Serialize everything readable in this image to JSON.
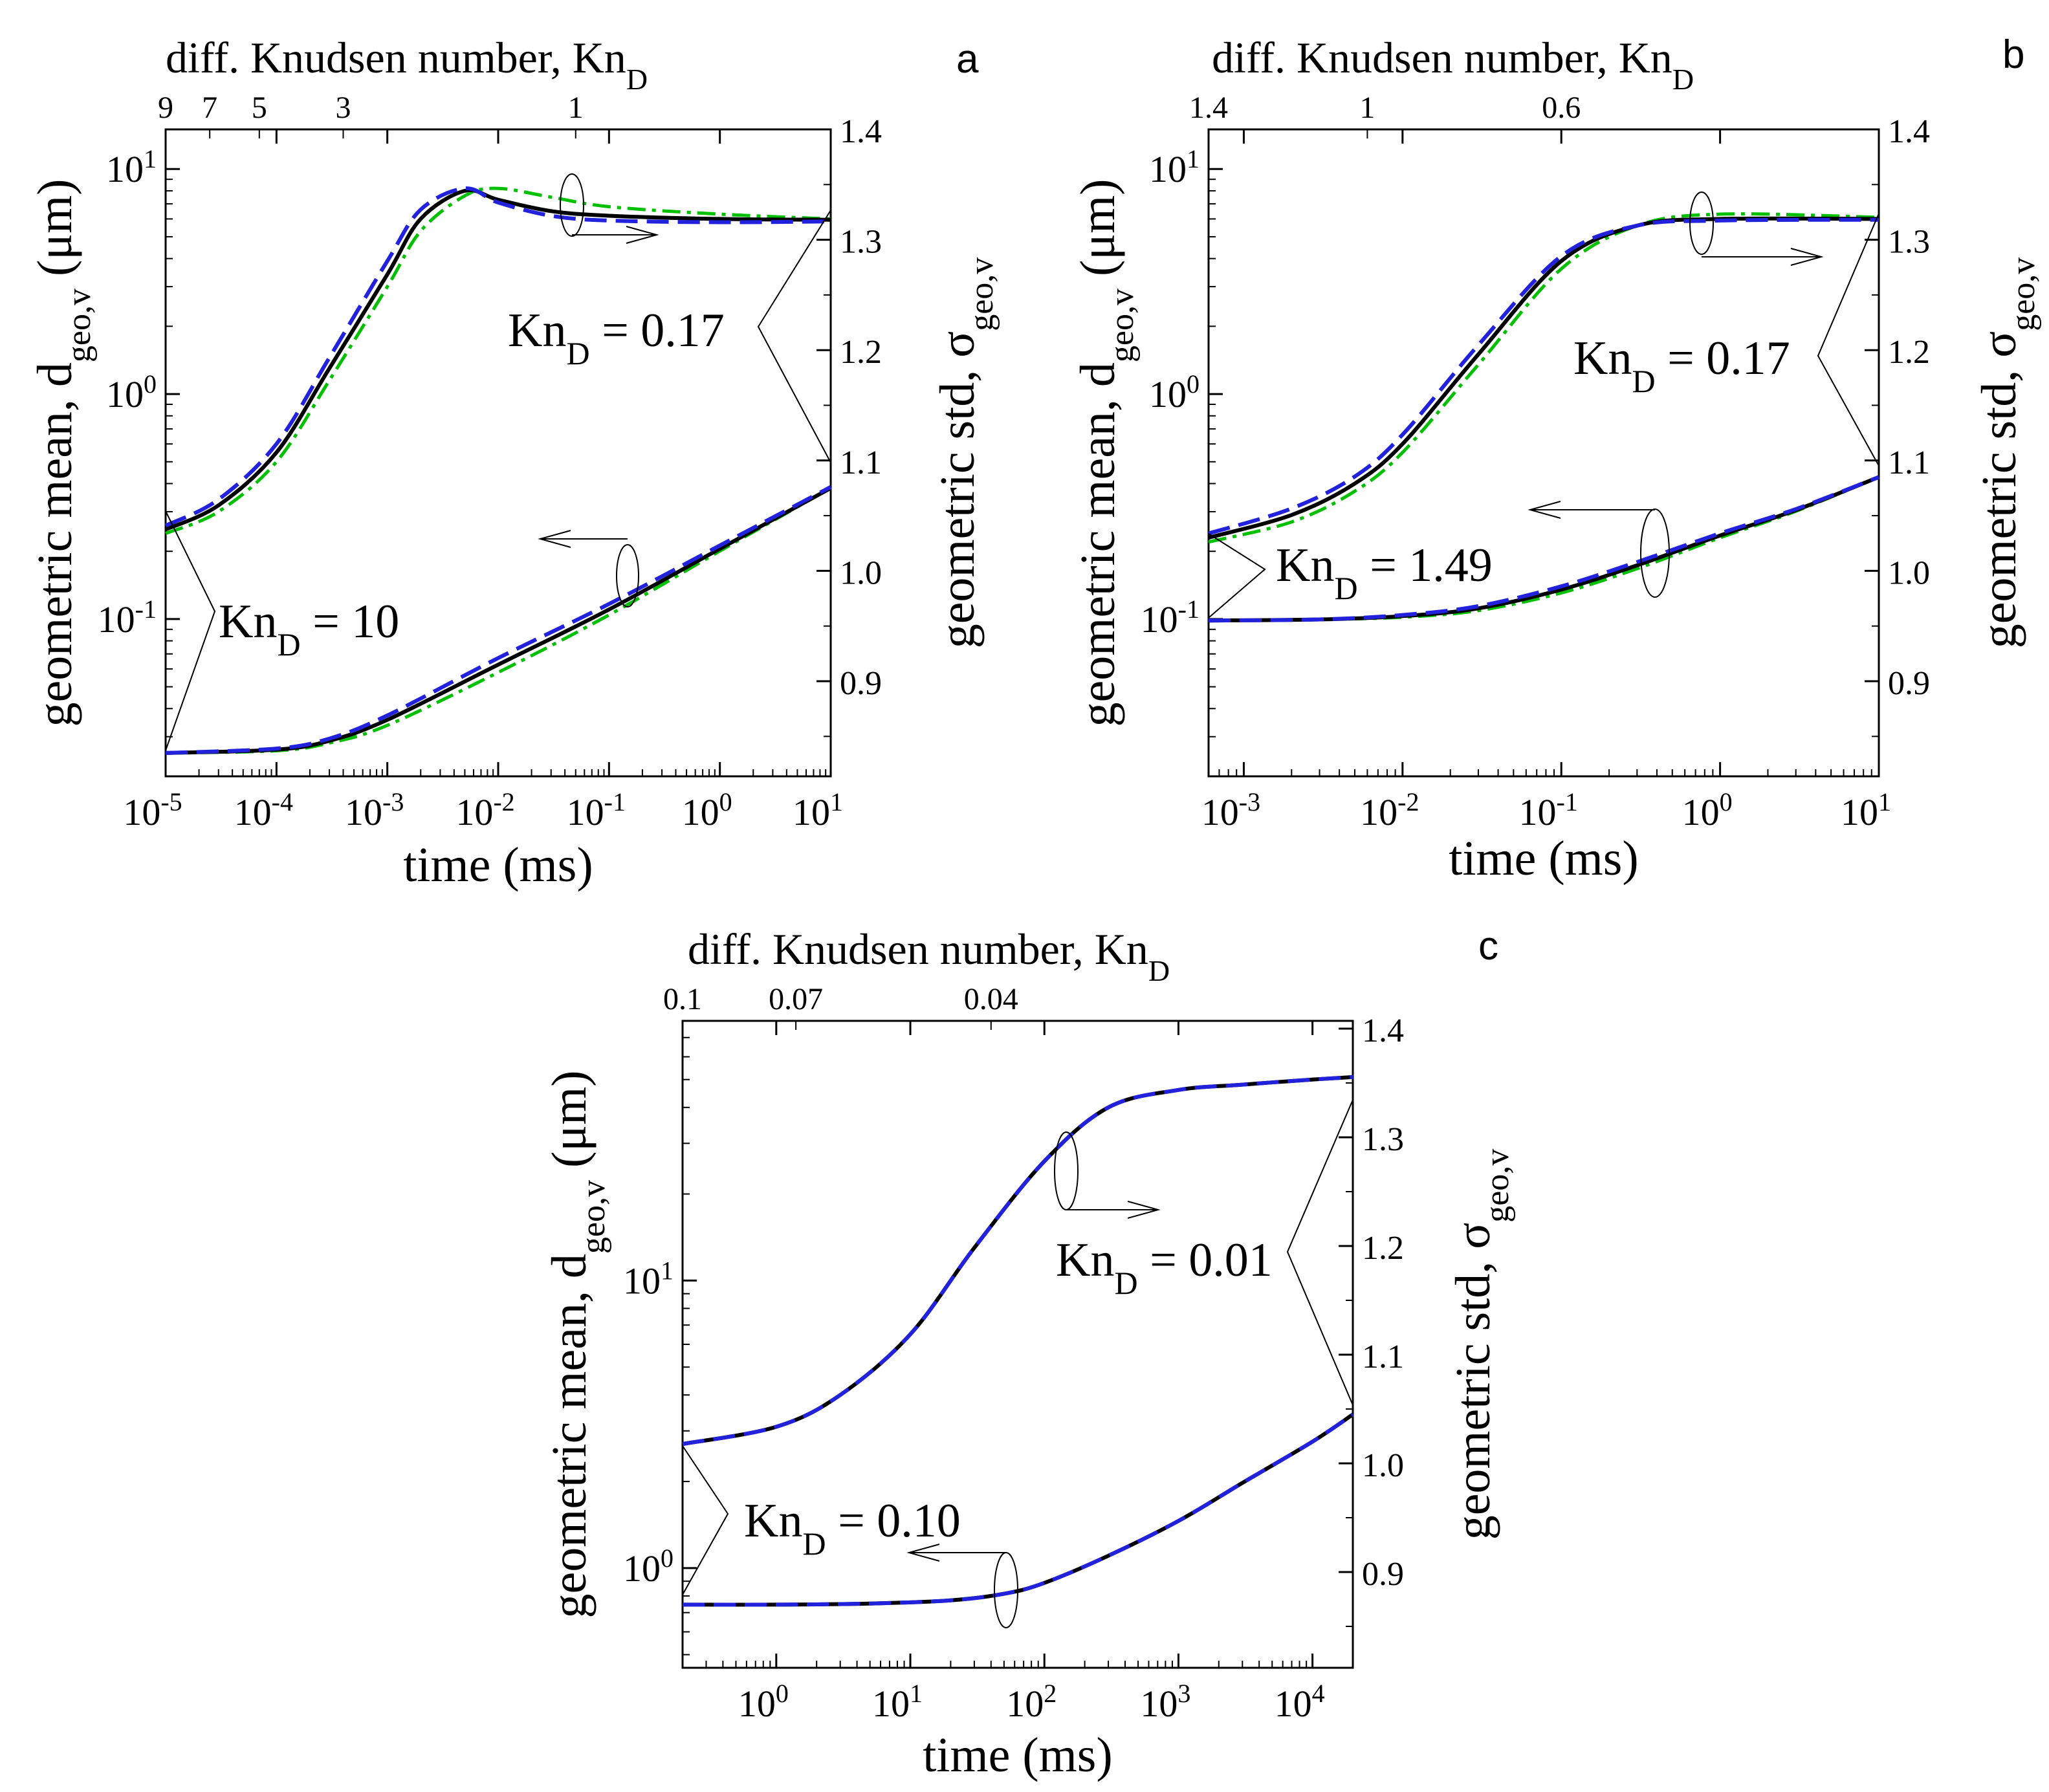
{
  "colors": {
    "black": "#000000",
    "green": "#00c000",
    "blue": "#2222dd",
    "axis": "#000000"
  },
  "panels": [
    {
      "id": "a",
      "letter": "a",
      "top_title": "diff. Knudsen number, Kn",
      "top_title_sub": "D",
      "top_ticks": [
        "9",
        "7",
        "5",
        "3",
        "1"
      ],
      "ylabel_pre": "geometric mean, d",
      "ylabel_sub": "geo,v",
      "ylabel_post": " (μm)",
      "y2label_pre": "geometric std, σ",
      "y2label_sub": "geo,v",
      "xlabel": "time (ms)",
      "xticks": [
        "-5",
        "-4",
        "-3",
        "-2",
        "-1",
        "0",
        "1"
      ],
      "yticks": [
        "-1",
        "0",
        "1"
      ],
      "y2ticks": [
        "0.9",
        "1.0",
        "1.1",
        "1.2",
        "1.3",
        "1.4"
      ],
      "ann_upper": {
        "pre": "Kn",
        "sub": "D",
        "post": " = 0.17"
      },
      "ann_lower": {
        "pre": "Kn",
        "sub": "D",
        "post": " = 10"
      }
    },
    {
      "id": "b",
      "letter": "b",
      "top_title": "diff. Knudsen number, Kn",
      "top_title_sub": "D",
      "top_ticks": [
        "1.4",
        "1",
        "0.6"
      ],
      "ylabel_pre": "geometric mean, d",
      "ylabel_sub": "geo,v",
      "ylabel_post": " (μm)",
      "y2label_pre": "geometric std, σ",
      "y2label_sub": "geo,v",
      "xlabel": "time (ms)",
      "xticks": [
        "-3",
        "-2",
        "-1",
        "0",
        "1"
      ],
      "yticks": [
        "-1",
        "0",
        "1"
      ],
      "y2ticks": [
        "0.9",
        "1.0",
        "1.1",
        "1.2",
        "1.3",
        "1.4"
      ],
      "ann_upper": {
        "pre": "Kn",
        "sub": "D",
        "post": " = 0.17"
      },
      "ann_lower": {
        "pre": "Kn",
        "sub": "D",
        "post": " = 1.49"
      }
    },
    {
      "id": "c",
      "letter": "c",
      "top_title": "diff. Knudsen number, Kn",
      "top_title_sub": "D",
      "top_ticks": [
        "0.1",
        "0.07",
        "0.04"
      ],
      "ylabel_pre": "geometric mean, d",
      "ylabel_sub": "geo,v",
      "ylabel_post": " (μm)",
      "y2label_pre": "geometric std, σ",
      "y2label_sub": "geo,v",
      "xlabel": "time (ms)",
      "xticks": [
        "0",
        "1",
        "2",
        "3",
        "4"
      ],
      "yticks": [
        "0",
        "1"
      ],
      "y2ticks": [
        "0.9",
        "1.0",
        "1.1",
        "1.2",
        "1.3",
        "1.4"
      ],
      "ann_upper": {
        "pre": "Kn",
        "sub": "D",
        "post": " = 0.01"
      },
      "ann_lower": {
        "pre": "Kn",
        "sub": "D",
        "post": " = 0.10"
      }
    }
  ],
  "chart_data": [
    {
      "type": "line",
      "panel": "a",
      "xlabel": "time (ms)",
      "x_scale": "log10",
      "xlim": [
        1e-05,
        10
      ],
      "ylabel": "geometric mean, d_geo,v (μm)",
      "y_scale": "log10",
      "ylim": [
        0.02,
        15
      ],
      "y2label": "geometric std, σ_geo,v",
      "y2lim": [
        0.82,
        1.4
      ],
      "top_axis": {
        "label": "diff. Knudsen number, Kn_D",
        "ticks": [
          9,
          7,
          5,
          3,
          1
        ]
      },
      "series": [
        {
          "name": "mean (black solid)",
          "axis": "left",
          "color": "black",
          "dash": "solid",
          "x": [
            1e-05,
            3e-05,
            0.0001,
            0.0003,
            0.001,
            0.002,
            0.005,
            0.01,
            0.03,
            0.1,
            1,
            10
          ],
          "y": [
            0.25,
            0.32,
            0.55,
            1.3,
            3.4,
            6.0,
            8.0,
            7.3,
            6.5,
            6.2,
            6.0,
            5.95
          ]
        },
        {
          "name": "mean (green dash-dot)",
          "axis": "left",
          "color": "green",
          "dash": "dashdot",
          "x": [
            1e-05,
            3e-05,
            0.0001,
            0.0003,
            0.001,
            0.002,
            0.005,
            0.01,
            0.03,
            0.1,
            1,
            10
          ],
          "y": [
            0.24,
            0.3,
            0.5,
            1.15,
            3.0,
            5.3,
            7.6,
            8.2,
            7.5,
            6.8,
            6.3,
            6.0
          ]
        },
        {
          "name": "mean (blue dashed)",
          "axis": "left",
          "color": "blue",
          "dash": "dashed",
          "x": [
            1e-05,
            3e-05,
            0.0001,
            0.0003,
            0.001,
            0.002,
            0.005,
            0.01,
            0.03,
            0.1,
            1,
            10
          ],
          "y": [
            0.26,
            0.34,
            0.6,
            1.45,
            3.9,
            6.6,
            8.2,
            7.1,
            6.2,
            5.9,
            5.8,
            5.85
          ]
        },
        {
          "name": "std (black solid)",
          "axis": "right",
          "color": "black",
          "dash": "solid",
          "x": [
            1e-05,
            0.0001,
            0.0003,
            0.001,
            0.01,
            0.1,
            1,
            10
          ],
          "y": [
            0.835,
            0.838,
            0.846,
            0.865,
            0.915,
            0.965,
            1.02,
            1.075
          ]
        },
        {
          "name": "std (green dash-dot)",
          "axis": "right",
          "color": "green",
          "dash": "dashdot",
          "x": [
            1e-05,
            0.0001,
            0.0003,
            0.001,
            0.01,
            0.1,
            1,
            10
          ],
          "y": [
            0.835,
            0.837,
            0.844,
            0.86,
            0.908,
            0.96,
            1.018,
            1.075
          ]
        },
        {
          "name": "std (blue dashed)",
          "axis": "right",
          "color": "blue",
          "dash": "dashed",
          "x": [
            1e-05,
            0.0001,
            0.0003,
            0.001,
            0.01,
            0.1,
            1,
            10
          ],
          "y": [
            0.835,
            0.839,
            0.848,
            0.869,
            0.921,
            0.97,
            1.023,
            1.076
          ]
        }
      ],
      "annotations": [
        "Kn_D = 0.17",
        "Kn_D = 10"
      ]
    },
    {
      "type": "line",
      "panel": "b",
      "xlabel": "time (ms)",
      "x_scale": "log10",
      "xlim": [
        0.0006,
        10
      ],
      "ylabel": "geometric mean, d_geo,v (μm)",
      "y_scale": "log10",
      "ylim": [
        0.02,
        15
      ],
      "y2label": "geometric std, σ_geo,v",
      "y2lim": [
        0.82,
        1.4
      ],
      "top_axis": {
        "label": "diff. Knudsen number, Kn_D",
        "ticks": [
          1.4,
          1,
          0.6
        ]
      },
      "series": [
        {
          "name": "mean (black solid)",
          "axis": "left",
          "color": "black",
          "dash": "solid",
          "x": [
            0.0006,
            0.002,
            0.005,
            0.01,
            0.03,
            0.1,
            0.3,
            1,
            10
          ],
          "y": [
            0.23,
            0.29,
            0.4,
            0.6,
            1.5,
            3.9,
            5.6,
            6.0,
            6.0
          ]
        },
        {
          "name": "mean (green dash-dot)",
          "axis": "left",
          "color": "green",
          "dash": "dashdot",
          "x": [
            0.0006,
            0.002,
            0.005,
            0.01,
            0.03,
            0.1,
            0.3,
            1,
            10
          ],
          "y": [
            0.22,
            0.27,
            0.37,
            0.55,
            1.35,
            3.6,
            5.6,
            6.3,
            6.1
          ]
        },
        {
          "name": "mean (blue dashed)",
          "axis": "left",
          "color": "blue",
          "dash": "dashed",
          "x": [
            0.0006,
            0.002,
            0.005,
            0.01,
            0.03,
            0.1,
            0.3,
            1,
            10
          ],
          "y": [
            0.24,
            0.31,
            0.43,
            0.66,
            1.65,
            4.1,
            5.6,
            5.9,
            5.95
          ]
        },
        {
          "name": "std (black solid)",
          "axis": "right",
          "color": "black",
          "dash": "solid",
          "x": [
            0.0006,
            0.003,
            0.01,
            0.03,
            0.1,
            0.3,
            1,
            3,
            10
          ],
          "y": [
            0.955,
            0.956,
            0.959,
            0.966,
            0.983,
            1.005,
            1.032,
            1.055,
            1.085
          ]
        },
        {
          "name": "std (green dash-dot)",
          "axis": "right",
          "color": "green",
          "dash": "dashdot",
          "x": [
            0.0006,
            0.003,
            0.01,
            0.03,
            0.1,
            0.3,
            1,
            3,
            10
          ],
          "y": [
            0.955,
            0.956,
            0.958,
            0.964,
            0.98,
            1.002,
            1.03,
            1.054,
            1.085
          ]
        },
        {
          "name": "std (blue dashed)",
          "axis": "right",
          "color": "blue",
          "dash": "dashed",
          "x": [
            0.0006,
            0.003,
            0.01,
            0.03,
            0.1,
            0.3,
            1,
            3,
            10
          ],
          "y": [
            0.955,
            0.956,
            0.96,
            0.968,
            0.986,
            1.008,
            1.034,
            1.056,
            1.085
          ]
        }
      ],
      "annotations": [
        "Kn_D = 0.17",
        "Kn_D = 1.49"
      ]
    },
    {
      "type": "line",
      "panel": "c",
      "xlabel": "time (ms)",
      "x_scale": "log10",
      "xlim": [
        0.2,
        20000
      ],
      "ylabel": "geometric mean, d_geo,v (μm)",
      "y_scale": "log10",
      "ylim": [
        0.45,
        80
      ],
      "y2label": "geometric std, σ_geo,v",
      "y2lim": [
        0.84,
        1.4
      ],
      "top_axis": {
        "label": "diff. Knudsen number, Kn_D",
        "ticks": [
          0.1,
          0.07,
          0.04
        ]
      },
      "series": [
        {
          "name": "mean (black solid)",
          "axis": "left",
          "color": "black",
          "dash": "solid",
          "x": [
            0.2,
            1,
            3,
            10,
            30,
            100,
            300,
            1000,
            3000,
            10000,
            20000
          ],
          "y": [
            2.7,
            3.1,
            4.0,
            6.5,
            13,
            26,
            40,
            46,
            48,
            50,
            51
          ]
        },
        {
          "name": "mean (green dash-dot)",
          "axis": "left",
          "color": "green",
          "dash": "dashdot",
          "x": [
            0.2,
            1,
            3,
            10,
            30,
            100,
            300,
            1000,
            3000,
            10000,
            20000
          ],
          "y": [
            2.7,
            3.1,
            4.0,
            6.5,
            13,
            26,
            40,
            46,
            48,
            50,
            51
          ]
        },
        {
          "name": "mean (blue dashed)",
          "axis": "left",
          "color": "blue",
          "dash": "dashed",
          "x": [
            0.2,
            1,
            3,
            10,
            30,
            100,
            300,
            1000,
            3000,
            10000,
            20000
          ],
          "y": [
            2.7,
            3.1,
            4.0,
            6.5,
            13,
            26,
            40,
            46,
            48,
            50,
            51
          ]
        },
        {
          "name": "std (black solid)",
          "axis": "right",
          "color": "black",
          "dash": "solid",
          "x": [
            0.2,
            1,
            5,
            20,
            50,
            100,
            300,
            1000,
            3000,
            10000,
            20000
          ],
          "y": [
            0.87,
            0.87,
            0.871,
            0.874,
            0.88,
            0.89,
            0.915,
            0.947,
            0.982,
            1.02,
            1.045
          ]
        },
        {
          "name": "std (green dash-dot)",
          "axis": "right",
          "color": "green",
          "dash": "dashdot",
          "x": [
            0.2,
            1,
            5,
            20,
            50,
            100,
            300,
            1000,
            3000,
            10000,
            20000
          ],
          "y": [
            0.87,
            0.87,
            0.871,
            0.874,
            0.88,
            0.89,
            0.915,
            0.947,
            0.982,
            1.02,
            1.045
          ]
        },
        {
          "name": "std (blue dashed)",
          "axis": "right",
          "color": "blue",
          "dash": "dashed",
          "x": [
            0.2,
            1,
            5,
            20,
            50,
            100,
            300,
            1000,
            3000,
            10000,
            20000
          ],
          "y": [
            0.87,
            0.87,
            0.871,
            0.874,
            0.88,
            0.89,
            0.915,
            0.947,
            0.982,
            1.02,
            1.045
          ]
        }
      ],
      "annotations": [
        "Kn_D = 0.01",
        "Kn_D = 0.10"
      ]
    }
  ]
}
